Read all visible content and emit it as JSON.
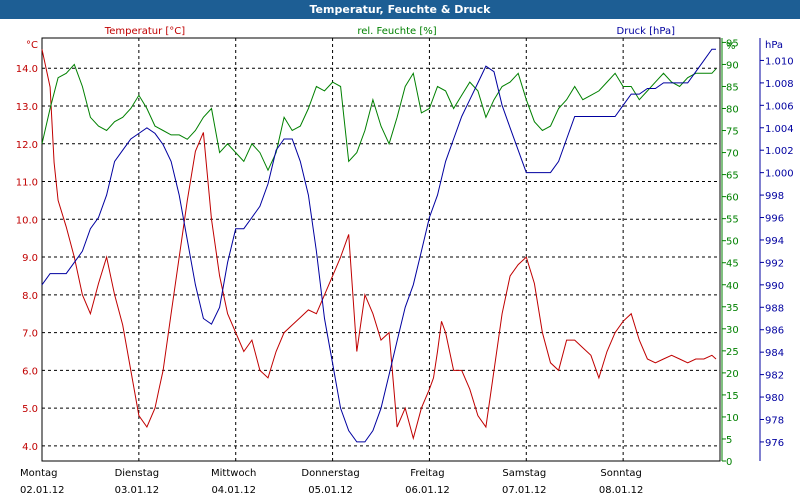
{
  "window": {
    "title": "Temperatur, Feuchte & Druck"
  },
  "colors": {
    "temperature": "#c00000",
    "humidity": "#008000",
    "pressure": "#0000a0",
    "title_bar": "#1d5e94",
    "grid": "#000000"
  },
  "chart_data": {
    "type": "line",
    "title": "Temperatur, Feuchte & Druck",
    "grid": true,
    "x": {
      "range": [
        "02.01.12 00:00",
        "08.01.12 24:00"
      ],
      "day_labels": [
        {
          "day": "Montag",
          "date": "02.01.12"
        },
        {
          "day": "Dienstag",
          "date": "03.01.12"
        },
        {
          "day": "Mittwoch",
          "date": "04.01.12"
        },
        {
          "day": "Donnerstag",
          "date": "05.01.12"
        },
        {
          "day": "Freitag",
          "date": "06.01.12"
        },
        {
          "day": "Samstag",
          "date": "07.01.12"
        },
        {
          "day": "Sonntag",
          "date": "08.01.12"
        }
      ]
    },
    "axes": {
      "temperature": {
        "unit": "°C",
        "label": "Temperatur [°C]",
        "ylim": [
          3.6,
          14.8
        ],
        "ticks": [
          "4.0",
          "5.0",
          "6.0",
          "7.0",
          "8.0",
          "9.0",
          "10.0",
          "11.0",
          "12.0",
          "13.0",
          "14.0"
        ]
      },
      "humidity": {
        "unit": "%",
        "label": "rel. Feuchte [%]",
        "ylim": [
          0,
          96
        ],
        "ticks": [
          "0",
          "5",
          "10",
          "15",
          "20",
          "25",
          "30",
          "35",
          "40",
          "45",
          "50",
          "55",
          "60",
          "65",
          "70",
          "75",
          "80",
          "85",
          "90",
          "95"
        ]
      },
      "pressure": {
        "unit": "hPa",
        "label": "Druck [hPa]",
        "ylim": [
          974.3,
          1012
        ],
        "ticks": [
          "976",
          "978",
          "980",
          "982",
          "984",
          "986",
          "988",
          "990",
          "992",
          "994",
          "996",
          "998",
          "1.000",
          "1.002",
          "1.004",
          "1.006",
          "1.008",
          "1.010"
        ]
      }
    },
    "series": [
      {
        "name": "Temperatur [°C]",
        "axis": "temperature",
        "x": [
          0,
          2,
          3,
          4,
          6,
          8,
          10,
          12,
          14,
          16,
          18,
          20,
          22,
          24,
          26,
          28,
          29,
          30,
          32,
          34,
          36,
          38,
          40,
          42,
          44,
          46,
          48,
          50,
          52,
          54,
          56,
          58,
          60,
          62,
          64,
          66,
          68,
          70,
          72,
          74,
          76,
          78,
          80,
          82,
          84,
          86,
          88,
          90,
          92,
          94,
          96,
          97,
          98,
          99,
          100,
          102,
          104,
          106,
          108,
          110,
          112,
          114,
          116,
          118,
          120,
          122,
          124,
          126,
          128,
          130,
          132,
          134,
          136,
          138,
          140,
          142,
          144,
          146,
          148,
          150,
          152,
          154,
          156,
          158,
          160,
          162,
          164,
          166,
          167
        ],
        "y": [
          14.5,
          13.5,
          11.5,
          10.5,
          9.8,
          9.0,
          8.0,
          7.5,
          8.3,
          9.0,
          8.0,
          7.2,
          6.0,
          4.8,
          4.5,
          5.0,
          5.5,
          6.0,
          7.5,
          9.0,
          10.5,
          11.8,
          12.3,
          10.0,
          8.5,
          7.5,
          7.0,
          6.5,
          6.8,
          6.0,
          5.8,
          6.5,
          7.0,
          7.2,
          7.4,
          7.6,
          7.5,
          8.0,
          8.5,
          9.0,
          9.6,
          6.5,
          8.0,
          7.5,
          6.8,
          7.0,
          4.5,
          5.0,
          4.2,
          5.0,
          5.5,
          5.8,
          6.5,
          7.3,
          7.0,
          6.0,
          6.0,
          5.5,
          4.8,
          4.5,
          6.0,
          7.5,
          8.5,
          8.8,
          9.0,
          8.3,
          7.0,
          6.2,
          6.0,
          6.8,
          6.8,
          6.6,
          6.4,
          5.8,
          6.5,
          7.0,
          7.3,
          7.5,
          6.8,
          6.3,
          6.2,
          6.3,
          6.4,
          6.3,
          6.2,
          6.3,
          6.3,
          6.4,
          6.3
        ]
      },
      {
        "name": "rel. Feuchte [%]",
        "axis": "humidity",
        "x": [
          0,
          2,
          4,
          6,
          8,
          10,
          12,
          14,
          16,
          18,
          20,
          22,
          24,
          26,
          28,
          30,
          32,
          34,
          36,
          38,
          40,
          42,
          44,
          46,
          48,
          50,
          52,
          54,
          56,
          58,
          60,
          62,
          64,
          66,
          68,
          70,
          72,
          74,
          76,
          78,
          80,
          82,
          84,
          86,
          88,
          90,
          92,
          94,
          96,
          98,
          100,
          102,
          104,
          106,
          108,
          110,
          112,
          114,
          116,
          118,
          120,
          122,
          124,
          126,
          128,
          130,
          132,
          134,
          136,
          138,
          140,
          142,
          144,
          146,
          148,
          150,
          152,
          154,
          156,
          158,
          160,
          162,
          164,
          166,
          167
        ],
        "y": [
          72,
          80,
          87,
          88,
          90,
          85,
          78,
          76,
          75,
          77,
          78,
          80,
          83,
          80,
          76,
          75,
          74,
          74,
          73,
          75,
          78,
          80,
          70,
          72,
          70,
          68,
          72,
          70,
          66,
          70,
          78,
          75,
          76,
          80,
          85,
          84,
          86,
          85,
          68,
          70,
          75,
          82,
          76,
          72,
          78,
          85,
          88,
          79,
          80,
          85,
          84,
          80,
          83,
          86,
          84,
          78,
          82,
          85,
          86,
          88,
          82,
          77,
          75,
          76,
          80,
          82,
          85,
          82,
          83,
          84,
          86,
          88,
          85,
          85,
          82,
          84,
          86,
          88,
          86,
          85,
          87,
          88,
          88,
          88,
          89
        ]
      },
      {
        "name": "Druck [hPa]",
        "axis": "pressure",
        "x": [
          0,
          2,
          4,
          6,
          8,
          10,
          12,
          14,
          16,
          18,
          20,
          22,
          24,
          26,
          28,
          30,
          32,
          34,
          36,
          38,
          40,
          42,
          44,
          46,
          48,
          50,
          52,
          54,
          56,
          58,
          60,
          62,
          64,
          66,
          68,
          70,
          72,
          74,
          76,
          78,
          80,
          82,
          84,
          86,
          88,
          90,
          92,
          94,
          96,
          98,
          100,
          102,
          104,
          106,
          108,
          110,
          112,
          114,
          116,
          118,
          120,
          122,
          124,
          126,
          128,
          130,
          132,
          134,
          136,
          138,
          140,
          142,
          144,
          146,
          148,
          150,
          152,
          154,
          156,
          158,
          160,
          162,
          164,
          166,
          167
        ],
        "y": [
          990,
          991,
          991,
          991,
          992,
          993,
          995,
          996,
          998,
          1001,
          1002,
          1003,
          1003.5,
          1004,
          1003.5,
          1002.5,
          1001,
          998,
          994,
          990,
          987,
          986.5,
          988,
          992,
          995,
          995,
          996,
          997,
          999,
          1002,
          1003,
          1003,
          1001,
          998,
          993,
          987,
          983,
          979,
          977,
          976,
          976,
          977,
          979,
          982,
          985,
          988,
          990,
          993,
          996,
          998,
          1001,
          1003,
          1005,
          1006.5,
          1008,
          1009.5,
          1009,
          1006,
          1004,
          1002,
          1000,
          1000,
          1000,
          1000,
          1001,
          1003,
          1005,
          1005,
          1005,
          1005,
          1005,
          1005,
          1006,
          1007,
          1007,
          1007.5,
          1007.5,
          1008,
          1008,
          1008,
          1008,
          1009,
          1010,
          1011,
          1011
        ]
      }
    ]
  }
}
